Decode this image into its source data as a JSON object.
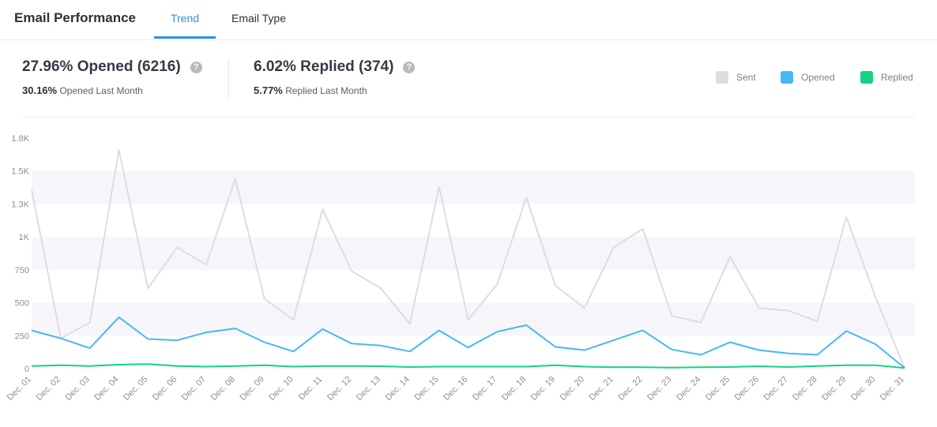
{
  "header": {
    "title": "Email Performance",
    "tabs": [
      "Trend",
      "Email Type"
    ]
  },
  "stats": {
    "opened": {
      "main": "27.96% Opened (6216)",
      "prev_value": "30.16%",
      "prev_label": "Opened Last Month"
    },
    "replied": {
      "main": "6.02% Replied (374)",
      "prev_value": "5.77%",
      "prev_label": "Replied Last Month"
    },
    "help_glyph": "?"
  },
  "legend": [
    {
      "label": "Sent",
      "color": "#dcdde2"
    },
    {
      "label": "Opened",
      "color": "#46b8f3"
    },
    {
      "label": "Replied",
      "color": "#13d384"
    }
  ],
  "chart_data": {
    "type": "line",
    "x": [
      "Dec. 01",
      "Dec. 02",
      "Dec. 03",
      "Dec. 04",
      "Dec. 05",
      "Dec. 06",
      "Dec. 07",
      "Dec. 08",
      "Dec. 09",
      "Dec. 10",
      "Dec. 11",
      "Dec. 12",
      "Dec. 13",
      "Dec. 14",
      "Dec. 15",
      "Dec. 16",
      "Dec. 17",
      "Dec. 18",
      "Dec. 19",
      "Dec. 20",
      "Dec. 21",
      "Dec. 22",
      "Dec. 23",
      "Dec. 24",
      "Dec. 25",
      "Dec. 26",
      "Dec. 27",
      "Dec. 28",
      "Dec. 29",
      "Dec. 30",
      "Dec. 31"
    ],
    "yticks": [
      0,
      250,
      500,
      750,
      1000,
      1250,
      1500,
      1750
    ],
    "ytick_labels": [
      "0",
      "250",
      "500",
      "750",
      "1K",
      "1.3K",
      "1.5K",
      "1.8K"
    ],
    "ylim": [
      0,
      1750
    ],
    "series": [
      {
        "name": "Sent",
        "color": "#dcdde2",
        "values": [
          1360,
          230,
          350,
          1660,
          610,
          920,
          790,
          1440,
          530,
          370,
          1210,
          740,
          610,
          340,
          1380,
          370,
          640,
          1300,
          630,
          460,
          920,
          1060,
          400,
          350,
          850,
          460,
          440,
          360,
          1150,
          540,
          5
        ]
      },
      {
        "name": "Opened",
        "color": "#46b8f3",
        "values": [
          290,
          230,
          155,
          390,
          225,
          215,
          275,
          305,
          200,
          130,
          300,
          190,
          175,
          130,
          290,
          160,
          280,
          330,
          165,
          140,
          215,
          290,
          145,
          105,
          200,
          140,
          115,
          105,
          285,
          185,
          5
        ]
      },
      {
        "name": "Replied",
        "color": "#13d384",
        "values": [
          20,
          25,
          20,
          30,
          35,
          20,
          15,
          20,
          25,
          15,
          20,
          20,
          18,
          12,
          15,
          15,
          15,
          15,
          25,
          15,
          10,
          10,
          8,
          10,
          12,
          18,
          12,
          20,
          25,
          25,
          5
        ]
      }
    ]
  }
}
